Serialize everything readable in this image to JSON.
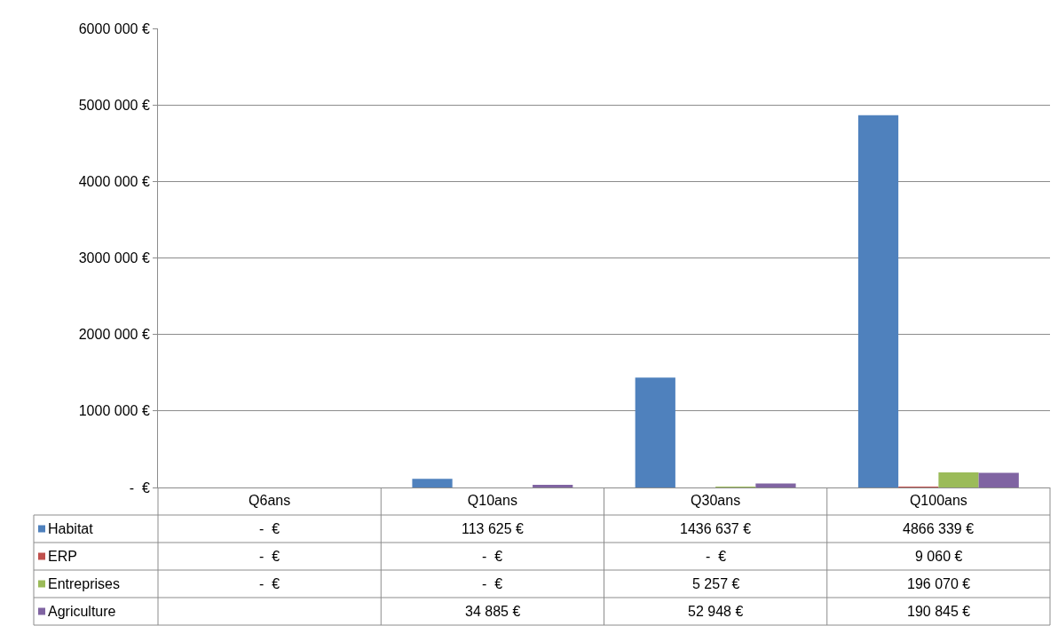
{
  "chart_data": {
    "type": "bar",
    "categories": [
      "Q6ans",
      "Q10ans",
      "Q30ans",
      "Q100ans"
    ],
    "series": [
      {
        "name": "Habitat",
        "color": "#4f81bd",
        "values": [
          0,
          113625,
          1436637,
          4866339
        ],
        "value_labels": [
          "-  €",
          "113 625 €",
          "1436 637 €",
          "4866 339 €"
        ]
      },
      {
        "name": "ERP",
        "color": "#c0504d",
        "values": [
          0,
          0,
          0,
          9060
        ],
        "value_labels": [
          "-  €",
          "-  €",
          "-  €",
          "9 060 €"
        ]
      },
      {
        "name": "Entreprises",
        "color": "#9bbb59",
        "values": [
          0,
          0,
          5257,
          196070
        ],
        "value_labels": [
          "-  €",
          "-  €",
          "5 257 €",
          "196 070 €"
        ]
      },
      {
        "name": "Agriculture",
        "color": "#8064a2",
        "values": [
          null,
          34885,
          52948,
          190845
        ],
        "value_labels": [
          null,
          "34 885 €",
          "52 948 €",
          "190 845 €"
        ]
      }
    ],
    "ylim": [
      0,
      6000000
    ],
    "yticks": [
      {
        "value": 0,
        "label": "-  €"
      },
      {
        "value": 1000000,
        "label": "1000 000 €"
      },
      {
        "value": 2000000,
        "label": "2000 000 €"
      },
      {
        "value": 3000000,
        "label": "3000 000 €"
      },
      {
        "value": 4000000,
        "label": "4000 000 €"
      },
      {
        "value": 5000000,
        "label": "5000 000 €"
      },
      {
        "value": 6000000,
        "label": "6000 000 €"
      }
    ],
    "grid": "y",
    "legend": "bottom left"
  }
}
